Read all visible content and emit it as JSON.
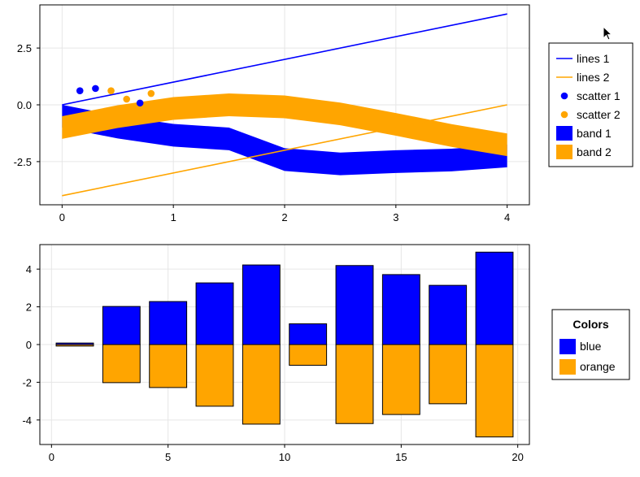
{
  "chart_data": [
    {
      "type": "line",
      "xlim": [
        -0.2,
        4.2
      ],
      "ylim": [
        -4.4,
        4.4
      ],
      "xticks": [
        0,
        1,
        2,
        3,
        4
      ],
      "yticks": [
        -2.5,
        0.0,
        2.5
      ],
      "ytick_labels": [
        "-2.5",
        "0.0",
        "2.5"
      ],
      "grid": true,
      "legend_position": "right",
      "series": [
        {
          "name": "lines 1",
          "kind": "line",
          "color": "#0000ff",
          "x": [
            0,
            4
          ],
          "y": [
            0,
            4
          ]
        },
        {
          "name": "lines 2",
          "kind": "line",
          "color": "#ffa500",
          "x": [
            0,
            4
          ],
          "y": [
            -4,
            0
          ]
        },
        {
          "name": "scatter 1",
          "kind": "scatter",
          "color": "#0000ff",
          "x": [
            0.16,
            0.3,
            0.7
          ],
          "y": [
            0.62,
            0.72,
            0.08
          ]
        },
        {
          "name": "scatter 2",
          "kind": "scatter",
          "color": "#ffa500",
          "x": [
            0.44,
            0.58,
            0.8
          ],
          "y": [
            0.62,
            0.25,
            0.5
          ]
        },
        {
          "name": "band 1",
          "kind": "band",
          "color": "#0000ff",
          "x": [
            0,
            0.5,
            1,
            1.5,
            2,
            2.5,
            3,
            3.5,
            4
          ],
          "lower": [
            -1.0,
            -1.48,
            -1.84,
            -2.0,
            -2.91,
            -3.1,
            -3.0,
            -2.93,
            -2.75
          ],
          "upper": [
            0.0,
            -0.48,
            -0.84,
            -1.0,
            -1.91,
            -2.1,
            -2.0,
            -1.93,
            -1.75
          ]
        },
        {
          "name": "band 2",
          "kind": "band",
          "color": "#ffa500",
          "x": [
            0,
            0.5,
            1,
            1.5,
            2,
            2.5,
            3,
            3.5,
            4
          ],
          "lower": [
            -1.5,
            -1.02,
            -0.66,
            -0.5,
            -0.59,
            -0.9,
            -1.36,
            -1.85,
            -2.26
          ],
          "upper": [
            -0.5,
            -0.02,
            0.34,
            0.5,
            0.41,
            0.1,
            -0.36,
            -0.85,
            -1.26
          ]
        }
      ]
    },
    {
      "type": "bar",
      "xlim": [
        -0.5,
        20.5
      ],
      "ylim": [
        -5.3,
        5.3
      ],
      "xticks": [
        0,
        5,
        10,
        15,
        20
      ],
      "yticks": [
        -4,
        -2,
        0,
        2,
        4
      ],
      "grid": true,
      "legend_position": "right",
      "legend_title": "Colors",
      "categories": [
        1,
        3,
        5,
        7,
        9,
        11,
        13,
        15,
        17,
        19
      ],
      "bar_width": 1.6,
      "series": [
        {
          "name": "blue",
          "color": "#0000ff",
          "values": [
            0.08,
            2.02,
            2.28,
            3.27,
            4.22,
            1.1,
            4.19,
            3.71,
            3.14,
            4.9
          ]
        },
        {
          "name": "orange",
          "color": "#ffa500",
          "values": [
            -0.08,
            -2.02,
            -2.28,
            -3.27,
            -4.22,
            -1.1,
            -4.19,
            -3.71,
            -3.14,
            -4.9
          ]
        }
      ]
    }
  ]
}
